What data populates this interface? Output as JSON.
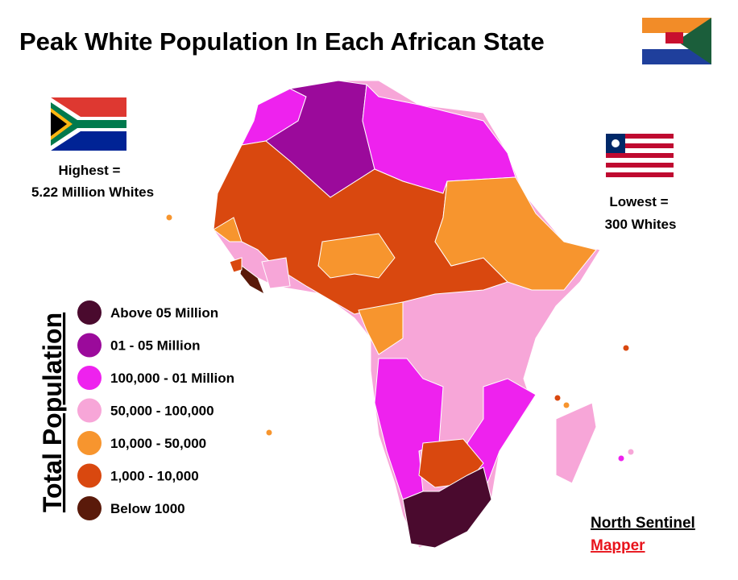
{
  "header": {
    "title": "Peak White Population In Each African State"
  },
  "highest": {
    "line1": "Highest =",
    "line2": "5.22 Million Whites"
  },
  "lowest": {
    "line1": "Lowest =",
    "line2": "300 Whites"
  },
  "legend": {
    "title": "Total Population",
    "items": [
      {
        "label": "Above 05 Million",
        "color": "#4a0a2e"
      },
      {
        "label": "01 - 05 Million",
        "color": "#9b0a9b"
      },
      {
        "label": "100,000 - 01 Million",
        "color": "#ee22ee"
      },
      {
        "label": "50,000 - 100,000",
        "color": "#f7a6d8"
      },
      {
        "label": "10,000 - 50,000",
        "color": "#f7952e"
      },
      {
        "label": "1,000 - 10,000",
        "color": "#d9480f"
      },
      {
        "label": "Below 1000",
        "color": "#5a1a0a"
      }
    ]
  },
  "credit": {
    "line1": "North Sentinel",
    "line2": "Mapper"
  }
}
